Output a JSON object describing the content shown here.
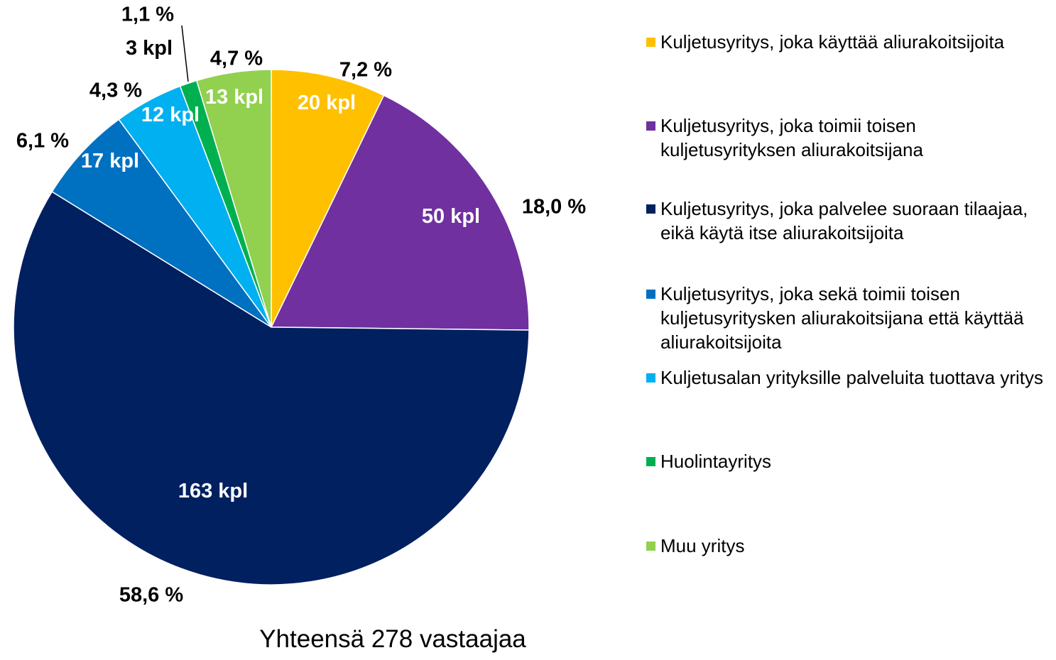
{
  "chart_data": {
    "type": "pie",
    "categories": [
      "Kuljetusyritys, joka käyttää aliurakoitsijoita",
      "Kuljetusyritys, joka toimii toisen kuljetusyrityksen aliurakoitsijana",
      "Kuljetusyritys, joka palvelee suoraan tilaajaa, eikä käytä itse aliurakoitsijoita",
      "Kuljetusyritys, joka sekä toimii toisen kuljetusyritysken aliurakoitsijana että käyttää aliurakoitsijoita",
      "Kuljetusalan yrityksille palveluita tuottava yritys",
      "Huolintayritys",
      "Muu yritys"
    ],
    "values": [
      20,
      50,
      163,
      17,
      12,
      3,
      13
    ],
    "value_labels": [
      "20 kpl",
      "50 kpl",
      "163 kpl",
      "17 kpl",
      "12 kpl",
      "3 kpl",
      "13 kpl"
    ],
    "percent_labels": [
      "7,2 %",
      "18,0 %",
      "58,6 %",
      "6,1 %",
      "4,3 %",
      "1,1 %",
      "4,7 %"
    ],
    "colors": [
      "#FFC000",
      "#7030A0",
      "#002060",
      "#0070C0",
      "#00B0F0",
      "#00B050",
      "#92D050"
    ],
    "title": "Yhteensä 278 vastaajaa",
    "legend": "right"
  }
}
